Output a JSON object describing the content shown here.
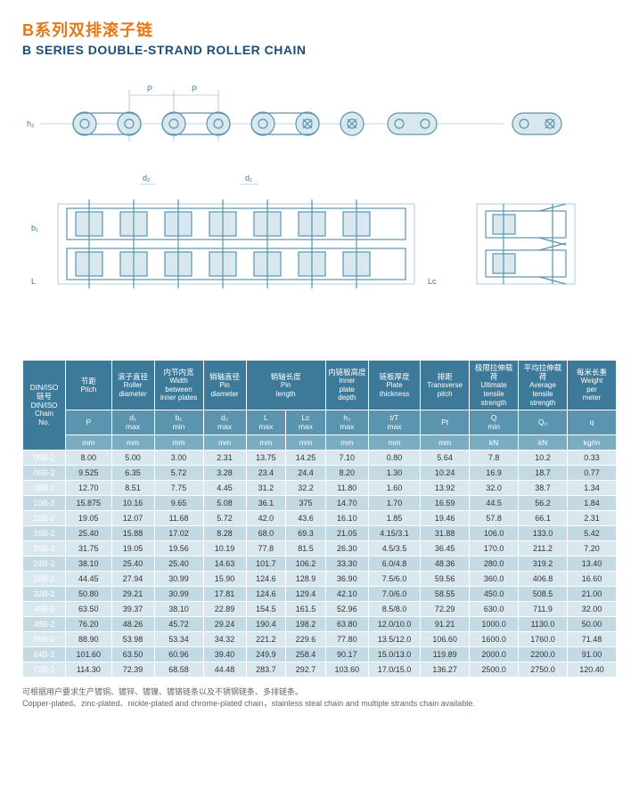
{
  "heading": {
    "cn": "B系列双排滚子链",
    "en": "B SERIES DOUBLE-STRAND ROLLER CHAIN"
  },
  "diagram_labels": {
    "P1": "P",
    "P2": "P",
    "h2": "h₂",
    "d1": "d₁",
    "d2": "d₂",
    "b1": "b₁",
    "L": "L",
    "Lc": "Lc"
  },
  "table": {
    "header_top": [
      {
        "cn": "DIN/ISO\n链号",
        "en": "DIN/ISO\nChain\nNo.",
        "rowspan": 3
      },
      {
        "cn": "节距",
        "en": "Pitch"
      },
      {
        "cn": "滚子直径",
        "en": "Roller\ndiameter"
      },
      {
        "cn": "内节内宽",
        "en": "Width\nbetween\ninner plates"
      },
      {
        "cn": "销轴直径",
        "en": "Pin\ndiameter"
      },
      {
        "cn": "销轴长度",
        "en": "Pin\nlength",
        "colspan": 2
      },
      {
        "cn": "内链板高度",
        "en": "Inner\nplate\ndepth"
      },
      {
        "cn": "链板厚度",
        "en": "Plate\nthickness"
      },
      {
        "cn": "排距",
        "en": "Transverse\npitch"
      },
      {
        "cn": "极限拉伸载荷",
        "en": "Ultimate\ntensile\nstrength"
      },
      {
        "cn": "平均拉伸载荷",
        "en": "Average\ntensile\nstrength"
      },
      {
        "cn": "每米长重",
        "en": "Weight\nper\nmeter"
      }
    ],
    "header_sym": [
      "P",
      "d₁\nmax",
      "b₁\nmin",
      "d₂\nmax",
      "L\nmax",
      "Lc\nmax",
      "h₂\nmax",
      "t/T\nmax",
      "Pt",
      "Q\nmin",
      "Q₀",
      "q"
    ],
    "header_unit": [
      "mm",
      "mm",
      "mm",
      "mm",
      "mm",
      "mm",
      "mm",
      "mm",
      "mm",
      "kN",
      "kN",
      "kg/m"
    ],
    "rows": [
      [
        "05B-2",
        "8.00",
        "5.00",
        "3.00",
        "2.31",
        "13.75",
        "14.25",
        "7.10",
        "0.80",
        "5.64",
        "7.8",
        "10.2",
        "0.33"
      ],
      [
        "06B-2",
        "9.525",
        "6.35",
        "5.72",
        "3.28",
        "23.4",
        "24.4",
        "8.20",
        "1.30",
        "10.24",
        "16.9",
        "18.7",
        "0.77"
      ],
      [
        "08B-2",
        "12.70",
        "8.51",
        "7.75",
        "4.45",
        "31.2",
        "32.2",
        "11.80",
        "1.60",
        "13.92",
        "32.0",
        "38.7",
        "1.34"
      ],
      [
        "10B-2",
        "15.875",
        "10.16",
        "9.65",
        "5.08",
        "36.1",
        "375",
        "14.70",
        "1.70",
        "16.59",
        "44.5",
        "56.2",
        "1.84"
      ],
      [
        "12B-2",
        "19.05",
        "12.07",
        "11.68",
        "5.72",
        "42.0",
        "43.6",
        "16.10",
        "1.85",
        "19.46",
        "57.8",
        "66.1",
        "2.31"
      ],
      [
        "16B-2",
        "25.40",
        "15.88",
        "17.02",
        "8.28",
        "68.0",
        "69.3",
        "21.05",
        "4.15/3.1",
        "31.88",
        "106.0",
        "133.0",
        "5.42"
      ],
      [
        "20B-2",
        "31.75",
        "19.05",
        "19.56",
        "10.19",
        "77.8",
        "81.5",
        "26.30",
        "4.5/3.5",
        "36.45",
        "170.0",
        "211.2",
        "7.20"
      ],
      [
        "24B-2",
        "38.10",
        "25.40",
        "25.40",
        "14.63",
        "101.7",
        "106.2",
        "33.30",
        "6.0/4.8",
        "48.36",
        "280.0",
        "319.2",
        "13.40"
      ],
      [
        "28B-2",
        "44.45",
        "27.94",
        "30.99",
        "15.90",
        "124.6",
        "128.9",
        "36.90",
        "7.5/6.0",
        "59.56",
        "360.0",
        "406.8",
        "16.60"
      ],
      [
        "32B-2",
        "50.80",
        "29.21",
        "30.99",
        "17.81",
        "124.6",
        "129.4",
        "42.10",
        "7.0/6.0",
        "58.55",
        "450.0",
        "508.5",
        "21.00"
      ],
      [
        "40B-2",
        "63.50",
        "39.37",
        "38.10",
        "22.89",
        "154.5",
        "161.5",
        "52.96",
        "8.5/8.0",
        "72.29",
        "630.0",
        "711.9",
        "32.00"
      ],
      [
        "48B-2",
        "76.20",
        "48.26",
        "45.72",
        "29.24",
        "190.4",
        "198.2",
        "63.80",
        "12.0/10.0",
        "91.21",
        "1000.0",
        "1130.0",
        "50.00"
      ],
      [
        "56B-2",
        "88.90",
        "53.98",
        "53.34",
        "34.32",
        "221.2",
        "229.6",
        "77.80",
        "13.5/12.0",
        "106.60",
        "1600.0",
        "1760.0",
        "71.48"
      ],
      [
        "64B-2",
        "101.60",
        "63.50",
        "60.96",
        "39.40",
        "249.9",
        "258.4",
        "90.17",
        "15.0/13.0",
        "119.89",
        "2000.0",
        "2200.0",
        "91.00"
      ],
      [
        "72B-2",
        "114.30",
        "72.39",
        "68.58",
        "44.48",
        "283.7",
        "292.7",
        "103.60",
        "17.0/15.0",
        "136.27",
        "2500.0",
        "2750.0",
        "120.40"
      ]
    ]
  },
  "footnote": {
    "cn": "可根据用户要求生产镀铜、镀锌、镀镍、镀铬链条以及不锈钢链条、多排链条。",
    "en": "Copper-plated、zinc-plated、nickle-plated and chrome-plated chain，stainless steal chain and multiple strands chain available."
  },
  "colors": {
    "accent_orange": "#e77817",
    "accent_blue_dark": "#1a4d7a",
    "th_bg1": "#3d7a99",
    "th_bg2": "#5a94af",
    "th_bg3": "#7aadc2",
    "row_odd": "#d9e8ef",
    "row_even": "#c3dae5"
  }
}
